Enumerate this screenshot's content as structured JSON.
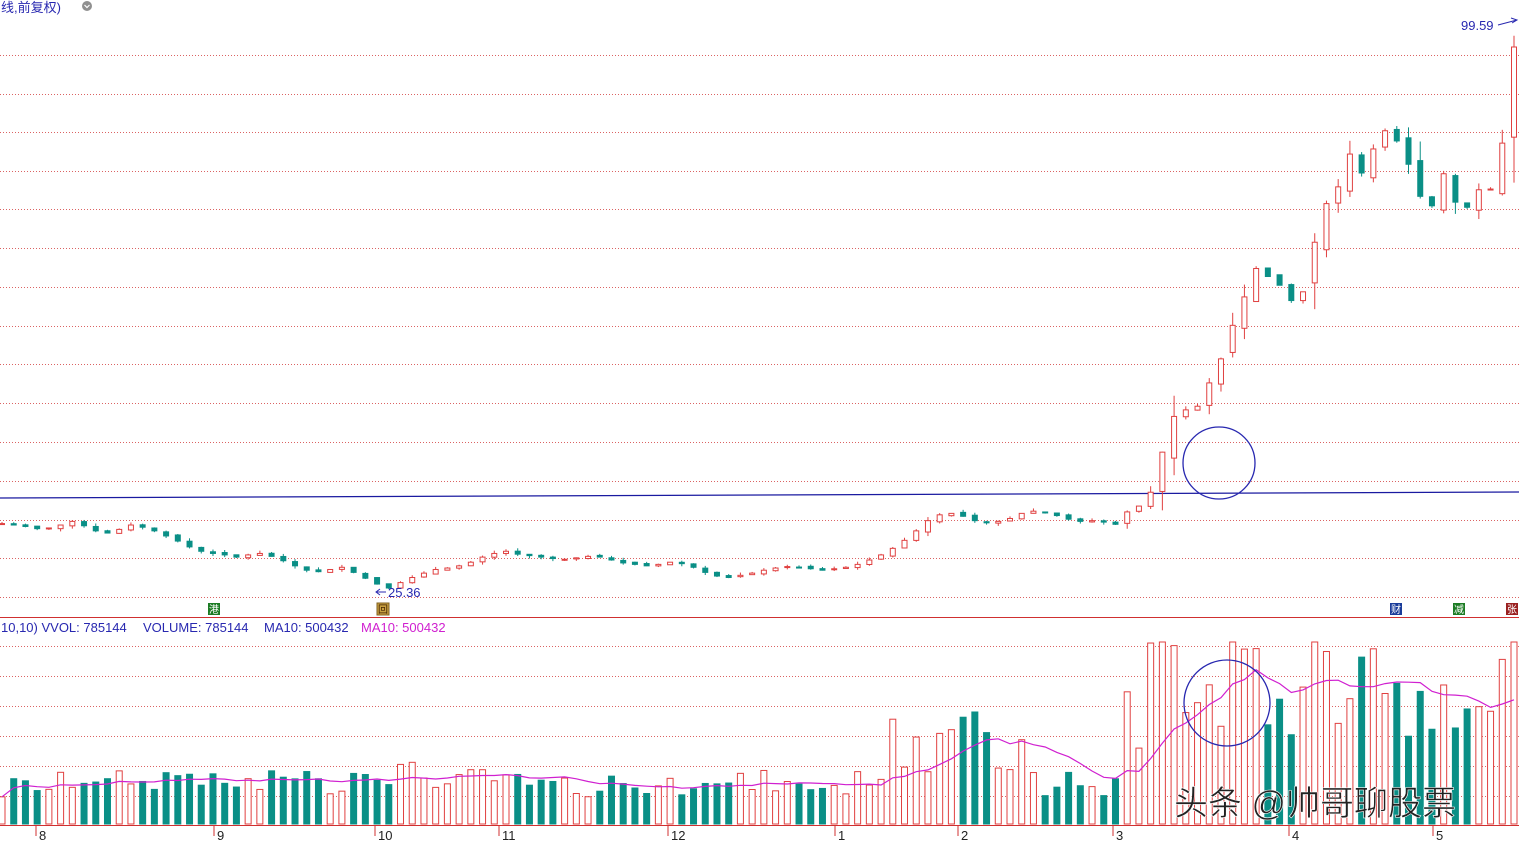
{
  "header": {
    "title_fragment": "线,前复权)",
    "max_label": "99.59",
    "min_label": "25.36"
  },
  "volume_header": {
    "prefix": "10,10) VVOL: 785144",
    "volume": "VOLUME: 785144",
    "ma10_a": "MA10: 500432",
    "ma10_b": "MA10: 500432"
  },
  "watermark": "头条 @帅哥聊股票",
  "event_markers": {
    "m1": "港",
    "m2": "回",
    "m3": "财",
    "m4": "减",
    "m5": "张"
  },
  "colors": {
    "up": "#e04040",
    "down": "#0a8f86",
    "grid": "#d03030",
    "trendline": "#1a1aa0",
    "ma": "#d020d0",
    "annotation": "#2828b0"
  },
  "chart_data": [
    {
      "type": "candlestick",
      "title": "",
      "y_range": [
        25.36,
        99.59
      ],
      "max_price": 99.59,
      "min_price": 25.36,
      "x_tick_labels": [
        "8",
        "9",
        "10",
        "11",
        "12",
        "1",
        "2",
        "3",
        "4",
        "5"
      ],
      "close_estimates": [
        34.2,
        34.0,
        33.8,
        33.5,
        33.6,
        34.0,
        34.5,
        33.9,
        33.2,
        32.9,
        33.4,
        34.0,
        33.7,
        33.2,
        32.5,
        31.8,
        31.0,
        30.4,
        30.1,
        29.9,
        29.6,
        29.9,
        30.1,
        29.7,
        29.1,
        28.4,
        27.8,
        27.6,
        27.9,
        28.2,
        27.5,
        26.7,
        25.9,
        25.36,
        26.1,
        26.8,
        27.4,
        27.9,
        28.1,
        28.4,
        28.9,
        29.6,
        30.1,
        30.4,
        30.0,
        29.8,
        29.6,
        29.4,
        29.3,
        29.5,
        29.7,
        29.6,
        29.2,
        28.8,
        28.6,
        28.4,
        28.6,
        28.9,
        28.7,
        28.2,
        27.5,
        27.0,
        26.8,
        27.1,
        27.4,
        27.8,
        28.1,
        28.3,
        28.2,
        28.0,
        27.8,
        28.0,
        28.2,
        28.6,
        29.2,
        29.9,
        30.8,
        31.9,
        33.2,
        34.6,
        35.4,
        35.6,
        35.2,
        34.6,
        34.3,
        34.5,
        34.9,
        35.6,
        35.9,
        35.7,
        35.3,
        34.8,
        34.5,
        34.6,
        34.4,
        34.1,
        35.8,
        36.6,
        38.5,
        44.0,
        48.9,
        49.8,
        50.3,
        53.5,
        56.8,
        61.4,
        65.3,
        69.2,
        68.1,
        66.9,
        64.8,
        66.0,
        72.8,
        78.1,
        80.4,
        84.9,
        82.3,
        85.6,
        88.1,
        86.7,
        83.5,
        79.1,
        77.8,
        82.2,
        78.3,
        77.6,
        80.0,
        80.1,
        86.4,
        99.59
      ],
      "trendline_label": ""
    },
    {
      "type": "bar",
      "title": "",
      "series": [
        {
          "name": "VOLUME",
          "last_value": 785144
        },
        {
          "name": "MA10",
          "last_value": 500432
        }
      ]
    }
  ]
}
